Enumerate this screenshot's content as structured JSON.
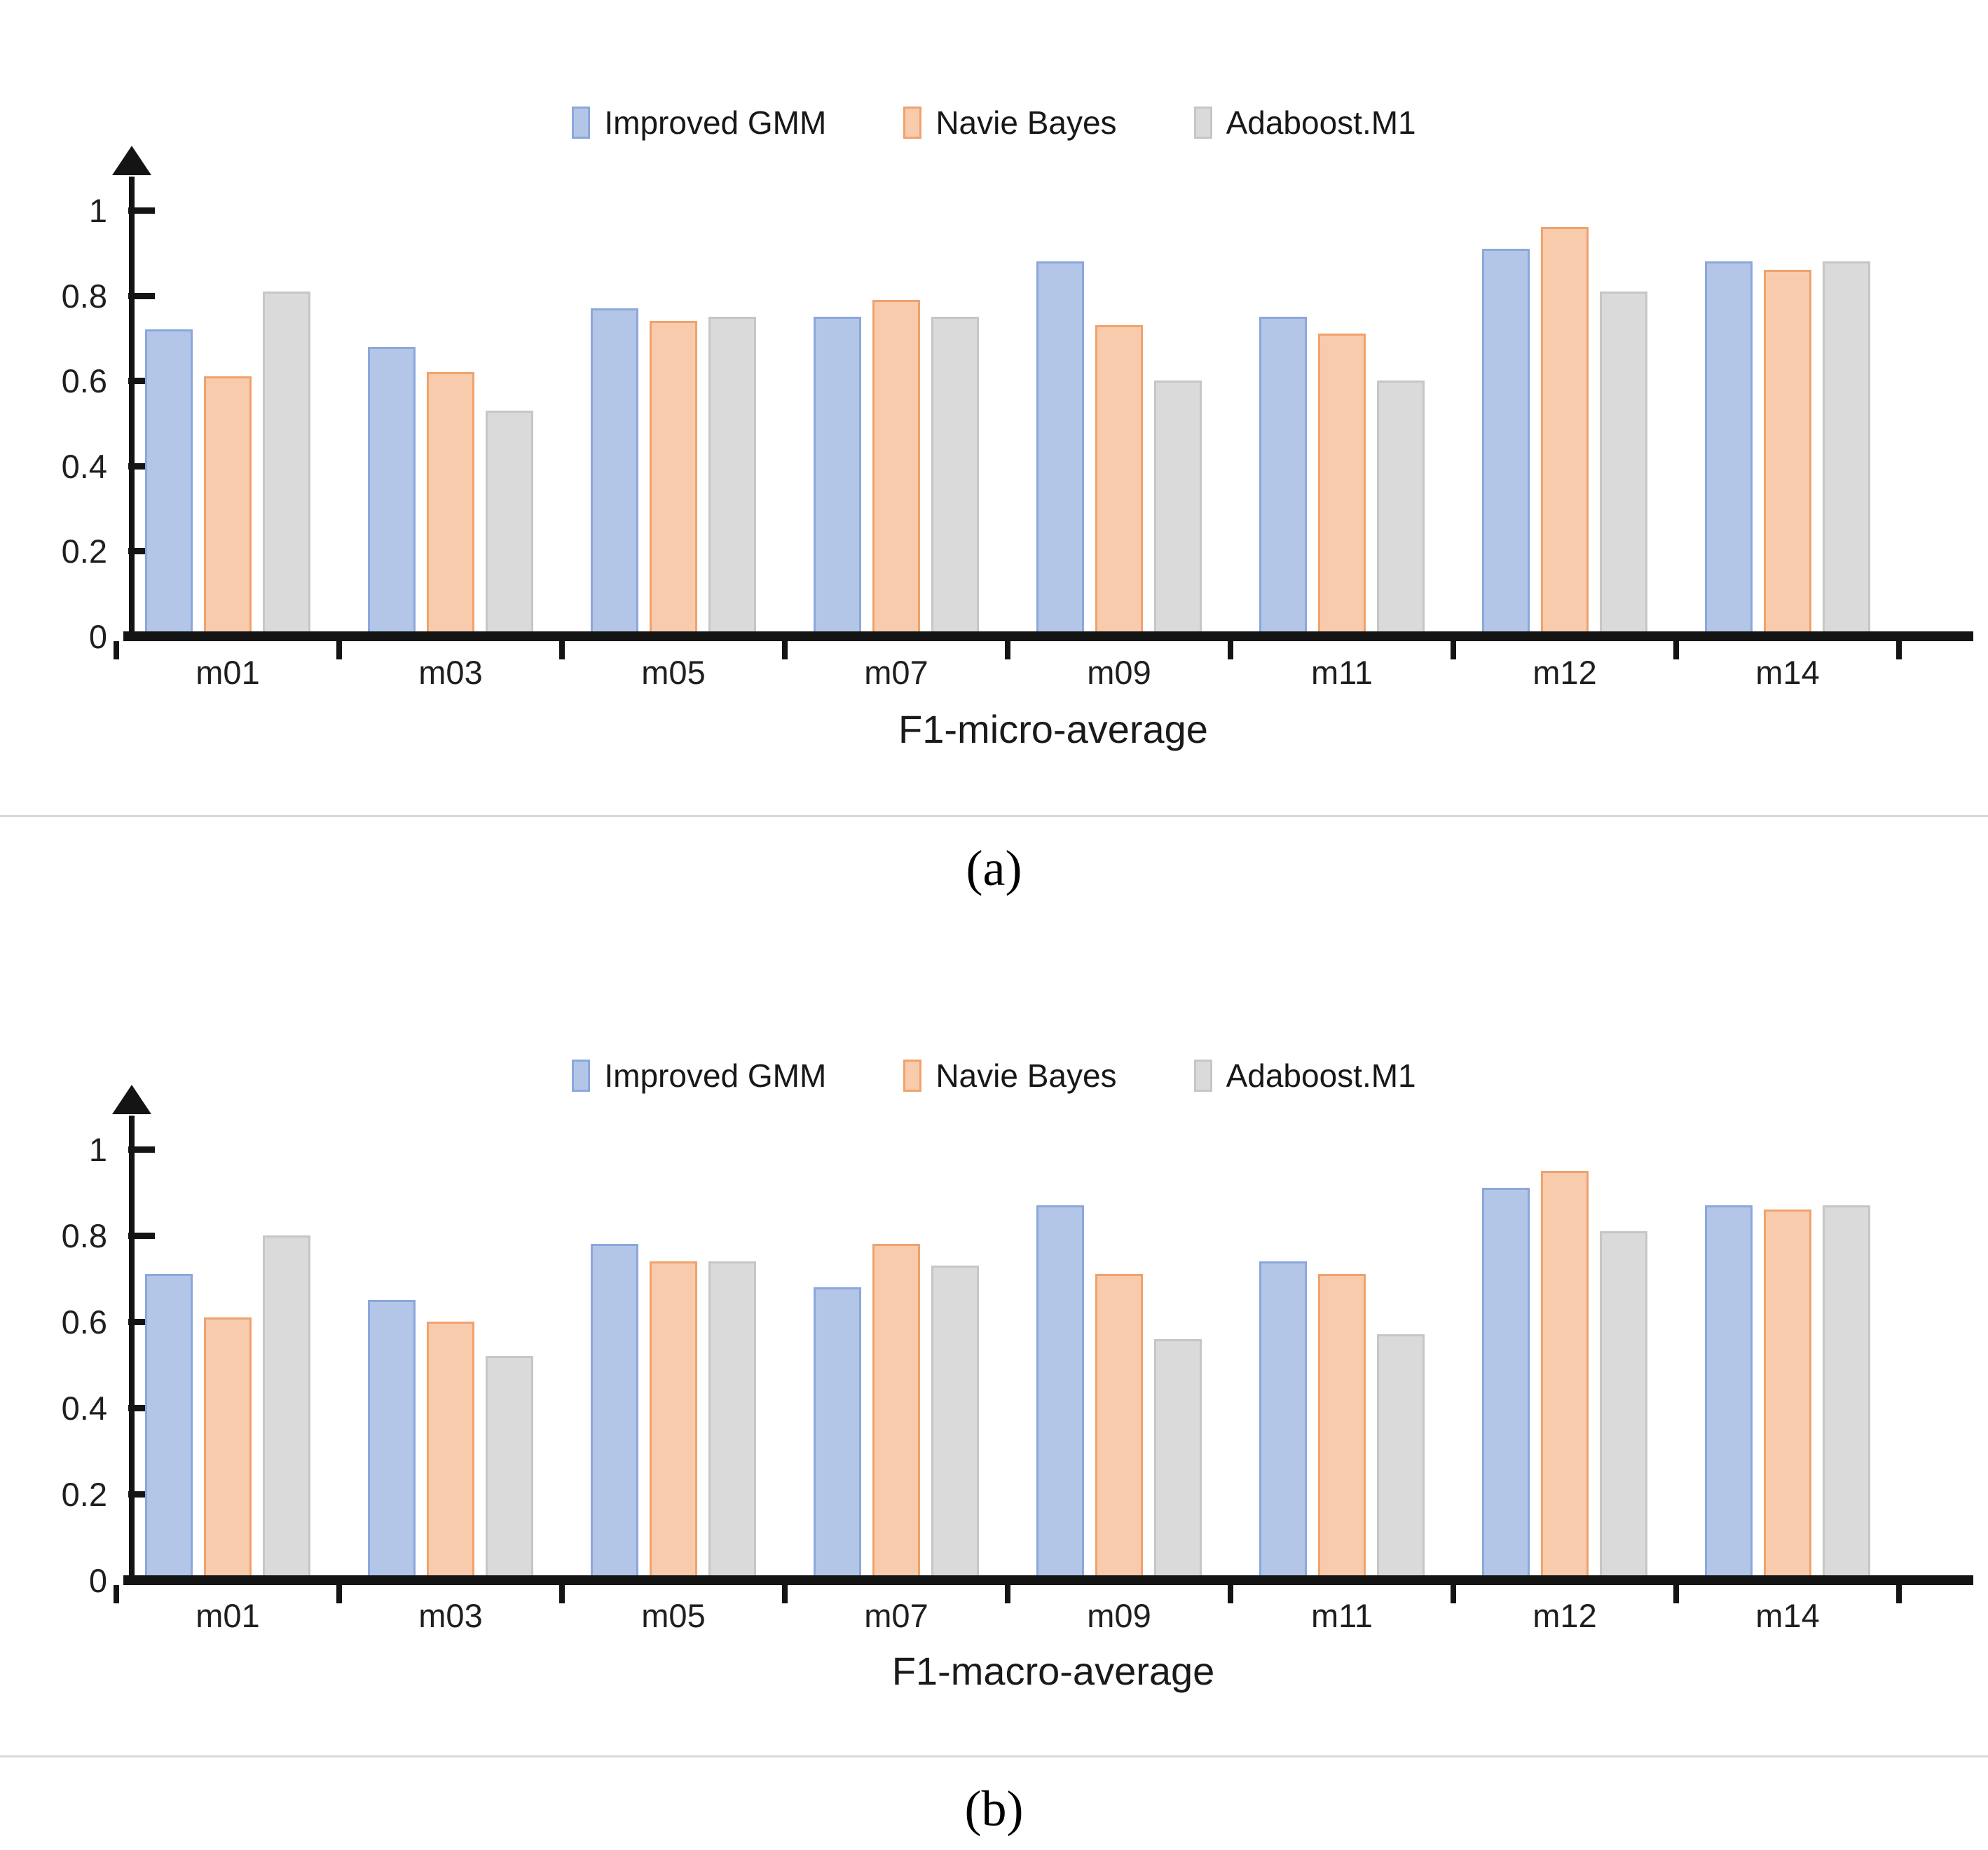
{
  "page": {
    "panel_labels": [
      "(a)",
      "(b)"
    ]
  },
  "legend": [
    {
      "label": "Improved GMM",
      "fill": "#B3C6E7",
      "border": "#8CA7DB"
    },
    {
      "label": "Navie Bayes",
      "fill": "#F8CBAD",
      "border": "#F0A26C"
    },
    {
      "label": "Adaboost.M1",
      "fill": "#DADADA",
      "border": "#C6C6C6"
    }
  ],
  "colors": {
    "axis": "#141414",
    "divider": "#d9d9d9"
  },
  "chart_data": [
    {
      "type": "bar",
      "title": "F1-micro-average",
      "panel_label": "(a)",
      "categories": [
        "m01",
        "m03",
        "m05",
        "m07",
        "m09",
        "m11",
        "m12",
        "m14"
      ],
      "series": [
        {
          "name": "Improved GMM",
          "values": [
            0.72,
            0.68,
            0.77,
            0.75,
            0.88,
            0.75,
            0.91,
            0.88
          ]
        },
        {
          "name": "Navie Bayes",
          "values": [
            0.61,
            0.62,
            0.74,
            0.79,
            0.73,
            0.71,
            0.96,
            0.86
          ]
        },
        {
          "name": "Adaboost.M1",
          "values": [
            0.81,
            0.53,
            0.75,
            0.75,
            0.6,
            0.6,
            0.81,
            0.88
          ]
        }
      ],
      "ylim": [
        0,
        1
      ],
      "y_ticks": [
        "1",
        "0.8",
        "0.6",
        "0.4",
        "0.2",
        "0"
      ],
      "grid": false,
      "legend_position": "top-center"
    },
    {
      "type": "bar",
      "title": "F1-macro-average",
      "panel_label": "(b)",
      "categories": [
        "m01",
        "m03",
        "m05",
        "m07",
        "m09",
        "m11",
        "m12",
        "m14"
      ],
      "series": [
        {
          "name": "Improved GMM",
          "values": [
            0.71,
            0.65,
            0.78,
            0.68,
            0.87,
            0.74,
            0.91,
            0.87
          ]
        },
        {
          "name": "Navie Bayes",
          "values": [
            0.61,
            0.6,
            0.74,
            0.78,
            0.71,
            0.71,
            0.95,
            0.86
          ]
        },
        {
          "name": "Adaboost.M1",
          "values": [
            0.8,
            0.52,
            0.74,
            0.73,
            0.56,
            0.57,
            0.81,
            0.87
          ]
        }
      ],
      "ylim": [
        0,
        1
      ],
      "y_ticks": [
        "1",
        "0.8",
        "0.6",
        "0.4",
        "0.2",
        "0"
      ],
      "grid": false,
      "legend_position": "top-center"
    }
  ]
}
